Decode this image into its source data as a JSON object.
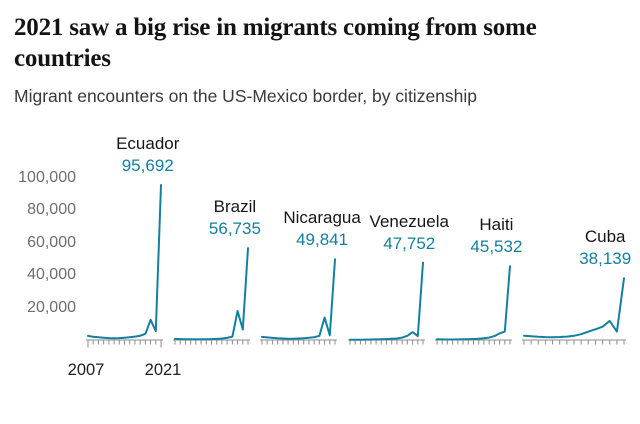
{
  "header": {
    "title": "2021 saw a big rise in migrants coming from some countries",
    "subtitle": "Migrant encounters on the US-Mexico border, by citizenship"
  },
  "chart_data": {
    "type": "line",
    "title": "2021 saw a big rise in migrants coming from some countries",
    "subtitle": "Migrant encounters on the US-Mexico border, by citizenship",
    "layout": "small-multiples",
    "grid": false,
    "legend": "none",
    "line_color": "#1380A1",
    "x": [
      2007,
      2008,
      2009,
      2010,
      2011,
      2012,
      2013,
      2014,
      2015,
      2016,
      2017,
      2018,
      2019,
      2020,
      2021
    ],
    "x_start_label": "2007",
    "x_end_label": "2021",
    "ylim": [
      0,
      110000
    ],
    "y_axis_ticks": [
      {
        "value": 100000,
        "label": "100,000"
      },
      {
        "value": 80000,
        "label": "80,000"
      },
      {
        "value": 60000,
        "label": "60,000"
      },
      {
        "value": 40000,
        "label": "40,000"
      },
      {
        "value": 20000,
        "label": "20,000"
      }
    ],
    "series": [
      {
        "name": "Ecuador",
        "peak": 95692,
        "peak_label": "95,692",
        "values": [
          2500,
          2000,
          1700,
          1400,
          1200,
          1100,
          1200,
          1400,
          1700,
          2100,
          2600,
          3800,
          12500,
          5500,
          95692
        ]
      },
      {
        "name": "Brazil",
        "peak": 56735,
        "peak_label": "56,735",
        "values": [
          650,
          550,
          480,
          420,
          400,
          420,
          480,
          560,
          700,
          900,
          1300,
          2100,
          17900,
          6500,
          56735
        ]
      },
      {
        "name": "Nicaragua",
        "peak": 49841,
        "peak_label": "49,841",
        "values": [
          1900,
          1600,
          1300,
          1050,
          900,
          820,
          820,
          920,
          1100,
          1350,
          1700,
          2600,
          13800,
          2900,
          49841
        ]
      },
      {
        "name": "Venezuela",
        "peak": 47752,
        "peak_label": "47,752",
        "values": [
          180,
          170,
          190,
          230,
          280,
          340,
          420,
          540,
          720,
          950,
          1500,
          2600,
          4900,
          2400,
          47752
        ]
      },
      {
        "name": "Haiti",
        "peak": 45532,
        "peak_label": "45,532",
        "values": [
          420,
          360,
          320,
          310,
          350,
          410,
          500,
          620,
          800,
          1050,
          1500,
          2400,
          4100,
          5200,
          45532
        ]
      },
      {
        "name": "Cuba",
        "peak": 38139,
        "peak_label": "38,139",
        "values": [
          2600,
          2300,
          2000,
          1800,
          1750,
          1850,
          2100,
          2600,
          3600,
          5100,
          6600,
          8200,
          11800,
          5200,
          38139
        ]
      }
    ]
  }
}
